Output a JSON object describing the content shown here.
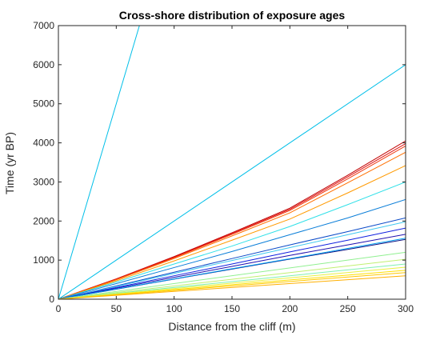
{
  "figure": {
    "background": "#ffffff",
    "axes_color": "#262626",
    "tick_label_color": "#262626"
  },
  "chart_data": {
    "type": "line",
    "title": "Cross-shore distribution of exposure ages",
    "xlabel": "Distance from the cliff (m)",
    "ylabel": "Time (yr BP)",
    "xlim": [
      0,
      300
    ],
    "ylim": [
      0,
      7000
    ],
    "x_ticks": [
      0,
      50,
      100,
      150,
      200,
      250,
      300
    ],
    "y_ticks": [
      0,
      1000,
      2000,
      3000,
      4000,
      5000,
      6000,
      7000
    ],
    "grid": false,
    "legend": "none",
    "series": [
      {
        "color": "#00bfe8",
        "x": [
          0,
          70
        ],
        "y": [
          0,
          7000
        ]
      },
      {
        "color": "#00bfe8",
        "x": [
          0,
          300
        ],
        "y": [
          0,
          6000
        ]
      },
      {
        "color": "#c00000",
        "x": [
          0,
          50,
          100,
          150,
          200,
          250,
          300
        ],
        "y": [
          0,
          520,
          1090,
          1700,
          2330,
          3170,
          4050
        ]
      },
      {
        "color": "#dd1010",
        "x": [
          0,
          50,
          100,
          150,
          200,
          250,
          300
        ],
        "y": [
          0,
          515,
          1075,
          1680,
          2300,
          3130,
          3980
        ]
      },
      {
        "color": "#f03a10",
        "x": [
          0,
          50,
          100,
          150,
          200,
          250,
          300
        ],
        "y": [
          0,
          505,
          1060,
          1660,
          2270,
          3080,
          3920
        ]
      },
      {
        "color": "#ff6f00",
        "x": [
          0,
          50,
          100,
          150,
          200,
          250,
          300
        ],
        "y": [
          0,
          495,
          1040,
          1620,
          2210,
          2980,
          3760
        ]
      },
      {
        "color": "#ff9a00",
        "x": [
          0,
          50,
          100,
          150,
          200,
          250,
          300
        ],
        "y": [
          0,
          470,
          980,
          1510,
          2050,
          2720,
          3420
        ]
      },
      {
        "color": "#30e0e8",
        "x": [
          0,
          50,
          100,
          150,
          200,
          250,
          300
        ],
        "y": [
          0,
          440,
          900,
          1360,
          1860,
          2420,
          3000
        ]
      },
      {
        "color": "#0a7ed8",
        "x": [
          0,
          50,
          100,
          150,
          200,
          250,
          300
        ],
        "y": [
          0,
          400,
          810,
          1220,
          1650,
          2080,
          2550
        ]
      },
      {
        "color": "#0a4ac8",
        "x": [
          0,
          50,
          100,
          150,
          200,
          250,
          300
        ],
        "y": [
          0,
          340,
          690,
          1040,
          1390,
          1730,
          2080
        ]
      },
      {
        "color": "#40c8f0",
        "x": [
          0,
          50,
          100,
          150,
          200,
          250,
          300
        ],
        "y": [
          0,
          325,
          660,
          990,
          1320,
          1650,
          1980
        ]
      },
      {
        "color": "#1020e0",
        "x": [
          0,
          50,
          100,
          150,
          200,
          250,
          300
        ],
        "y": [
          0,
          300,
          600,
          900,
          1210,
          1510,
          1820
        ]
      },
      {
        "color": "#2010b0",
        "x": [
          0,
          50,
          100,
          150,
          200,
          250,
          300
        ],
        "y": [
          0,
          280,
          560,
          840,
          1120,
          1390,
          1660
        ]
      },
      {
        "color": "#101080",
        "x": [
          0,
          50,
          100,
          150,
          200,
          250,
          300
        ],
        "y": [
          0,
          255,
          515,
          770,
          1025,
          1275,
          1530
        ]
      },
      {
        "color": "#00a0f0",
        "x": [
          0,
          50,
          100,
          150,
          200,
          250,
          300
        ],
        "y": [
          0,
          260,
          520,
          780,
          1035,
          1300,
          1560
        ]
      },
      {
        "color": "#90f090",
        "x": [
          0,
          300
        ],
        "y": [
          0,
          1200
        ]
      },
      {
        "color": "#c0f070",
        "x": [
          0,
          300
        ],
        "y": [
          0,
          1020
        ]
      },
      {
        "color": "#80f0b0",
        "x": [
          0,
          300
        ],
        "y": [
          0,
          900
        ]
      },
      {
        "color": "#e8f040",
        "x": [
          0,
          300
        ],
        "y": [
          0,
          820
        ]
      },
      {
        "color": "#ffe000",
        "x": [
          0,
          300
        ],
        "y": [
          0,
          740
        ]
      },
      {
        "color": "#ffc800",
        "x": [
          0,
          300
        ],
        "y": [
          0,
          680
        ]
      },
      {
        "color": "#ffb000",
        "x": [
          0,
          300
        ],
        "y": [
          0,
          600
        ]
      }
    ]
  }
}
